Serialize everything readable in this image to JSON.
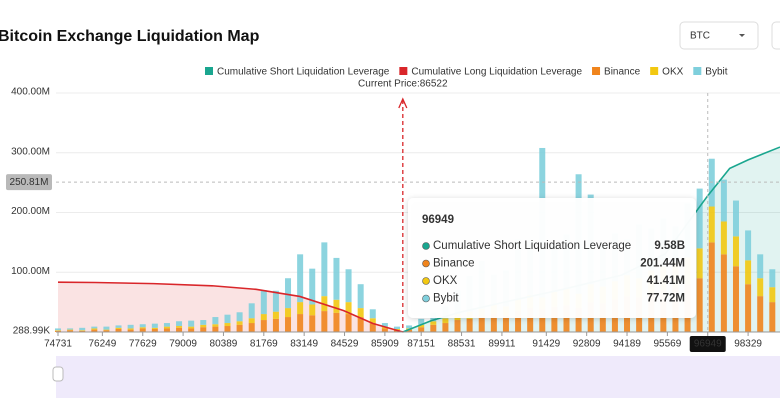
{
  "chart_data": {
    "type": "bar",
    "title": "Bitcoin Exchange Liquidation Map",
    "selector": "BTC",
    "xlim": [
      74663,
      99420
    ],
    "xticks": [
      74731,
      76249,
      77629,
      79009,
      80389,
      81769,
      83149,
      84529,
      85909,
      87151,
      88531,
      89911,
      91429,
      92809,
      94189,
      95569,
      96949,
      98329
    ],
    "ylim": [
      0,
      400000000.0
    ],
    "yticks": [
      {
        "value": 288990,
        "label": "288.99K"
      },
      {
        "value": 100000000.0,
        "label": "100.00M"
      },
      {
        "value": 200000000.0,
        "label": "200.00M"
      },
      {
        "value": 300000000.0,
        "label": "300.00M"
      },
      {
        "value": 400000000.0,
        "label": "400.00M"
      }
    ],
    "y2lim": [
      0,
      16800000000.0
    ],
    "grid": true,
    "legend": "top",
    "current_price": {
      "value": 86522,
      "label": "Current Price:86522"
    },
    "crosshair": {
      "x": 96949,
      "value": 250810000,
      "label": "250.81M"
    },
    "x": [
      74731,
      75145,
      75559,
      75973,
      76387,
      76801,
      77215,
      77629,
      78043,
      78457,
      78871,
      79285,
      79699,
      80113,
      80527,
      80941,
      81355,
      81769,
      82183,
      82597,
      83011,
      83425,
      83839,
      84253,
      84667,
      85081,
      85495,
      85909,
      86323,
      86737,
      87151,
      87565,
      87979,
      88393,
      88807,
      89221,
      89635,
      90049,
      90463,
      90877,
      91291,
      91705,
      92119,
      92533,
      92947,
      93361,
      93775,
      94189,
      94603,
      95017,
      95431,
      95845,
      96259,
      96673,
      97087,
      97501,
      97915,
      98329,
      98743,
      99157
    ],
    "series": [
      {
        "name": "Cumulative Short Liquidation Leverage",
        "kind": "line",
        "axis": "y2",
        "color": "#1aa68f",
        "x": [
          86522,
          87500,
          88500,
          90000,
          92000,
          94000,
          95500,
          96949,
          97700,
          98329,
          99420
        ],
        "values": [
          0,
          800000000.0,
          1400000000.0,
          2100000000.0,
          3000000000.0,
          4000000000.0,
          5500000000.0,
          9580000000.0,
          11500000000.0,
          12100000000.0,
          13000000000.0
        ]
      },
      {
        "name": "Cumulative Long Liquidation Leverage",
        "kind": "line",
        "axis": "y2",
        "color": "#d9262a",
        "x": [
          74731,
          76000,
          78000,
          80000,
          81500,
          83000,
          84500,
          85500,
          86522
        ],
        "values": [
          3500000000.0,
          3480000000.0,
          3400000000.0,
          3250000000.0,
          3000000000.0,
          2500000000.0,
          1500000000.0,
          600000000.0,
          0
        ]
      },
      {
        "name": "Binance",
        "color": "#f0841c",
        "values": [
          2000000.0,
          3000000.0,
          2000000.0,
          4000000.0,
          3000000.0,
          5000000.0,
          4000000.0,
          6000000.0,
          5000000.0,
          6000000.0,
          7000000.0,
          6000000.0,
          8000000.0,
          9000000.0,
          10000000.0,
          12000000.0,
          15000000.0,
          20000000.0,
          22000000.0,
          25000000.0,
          30000000.0,
          28000000.0,
          35000000.0,
          32000000.0,
          30000000.0,
          25000000.0,
          15000000.0,
          6000000.0,
          3000000.0,
          4000000.0,
          8000000.0,
          12000000.0,
          15000000.0,
          20000000.0,
          22000000.0,
          25000000.0,
          30000000.0,
          28000000.0,
          35000000.0,
          40000000.0,
          38000000.0,
          42000000.0,
          45000000.0,
          40000000.0,
          50000000.0,
          48000000.0,
          55000000.0,
          60000000.0,
          58000000.0,
          65000000.0,
          70000000.0,
          75000000.0,
          80000000.0,
          90000000.0,
          150000000.0,
          130000000.0,
          110000000.0,
          80000000.0,
          60000000.0,
          50000000.0
        ]
      },
      {
        "name": "OKX",
        "color": "#f2c811",
        "values": [
          1000000.0,
          1000000.0,
          1000000.0,
          2000000.0,
          1000000.0,
          2000000.0,
          2000000.0,
          2000000.0,
          2000000.0,
          3000000.0,
          3000000.0,
          3000000.0,
          4000000.0,
          4000000.0,
          5000000.0,
          6000000.0,
          8000000.0,
          10000000.0,
          12000000.0,
          15000000.0,
          20000000.0,
          18000000.0,
          25000000.0,
          22000000.0,
          20000000.0,
          15000000.0,
          8000000.0,
          3000000.0,
          2000000.0,
          2000000.0,
          4000000.0,
          6000000.0,
          8000000.0,
          10000000.0,
          12000000.0,
          14000000.0,
          16000000.0,
          15000000.0,
          20000000.0,
          22000000.0,
          20000000.0,
          25000000.0,
          28000000.0,
          24000000.0,
          30000000.0,
          28000000.0,
          30000000.0,
          35000000.0,
          32000000.0,
          38000000.0,
          40000000.0,
          42000000.0,
          45000000.0,
          50000000.0,
          60000000.0,
          55000000.0,
          50000000.0,
          40000000.0,
          30000000.0,
          25000000.0
        ]
      },
      {
        "name": "Bybit",
        "color": "#7fcfdc",
        "values": [
          3000000.0,
          2000000.0,
          4000000.0,
          3000000.0,
          5000000.0,
          4000000.0,
          6000000.0,
          5000000.0,
          7000000.0,
          6000000.0,
          8000000.0,
          10000000.0,
          8000000.0,
          12000000.0,
          14000000.0,
          15000000.0,
          25000000.0,
          40000000.0,
          35000000.0,
          50000000.0,
          80000000.0,
          60000000.0,
          90000000.0,
          70000000.0,
          55000000.0,
          40000000.0,
          15000000.0,
          6000000.0,
          4000000.0,
          5000000.0,
          10000000.0,
          15000000.0,
          20000000.0,
          40000000.0,
          60000000.0,
          80000000.0,
          50000000.0,
          60000000.0,
          100000000.0,
          90000000.0,
          250000000.0,
          80000000.0,
          90000000.0,
          200000000.0,
          150000000.0,
          70000000.0,
          80000000.0,
          60000000.0,
          90000000.0,
          70000000.0,
          80000000.0,
          60000000.0,
          90000000.0,
          100000000.0,
          80000000.0,
          70000000.0,
          60000000.0,
          50000000.0,
          40000000.0,
          30000000.0
        ]
      }
    ],
    "tooltip": {
      "title": "96949",
      "rows": [
        {
          "name": "Cumulative Short Liquidation Leverage",
          "value": "9.58B",
          "color": "#1aa68f"
        },
        {
          "name": "Binance",
          "value": "201.44M",
          "color": "#f0841c"
        },
        {
          "name": "OKX",
          "value": "41.41M",
          "color": "#f2c811"
        },
        {
          "name": "Bybit",
          "value": "77.72M",
          "color": "#7fcfdc"
        }
      ]
    }
  }
}
